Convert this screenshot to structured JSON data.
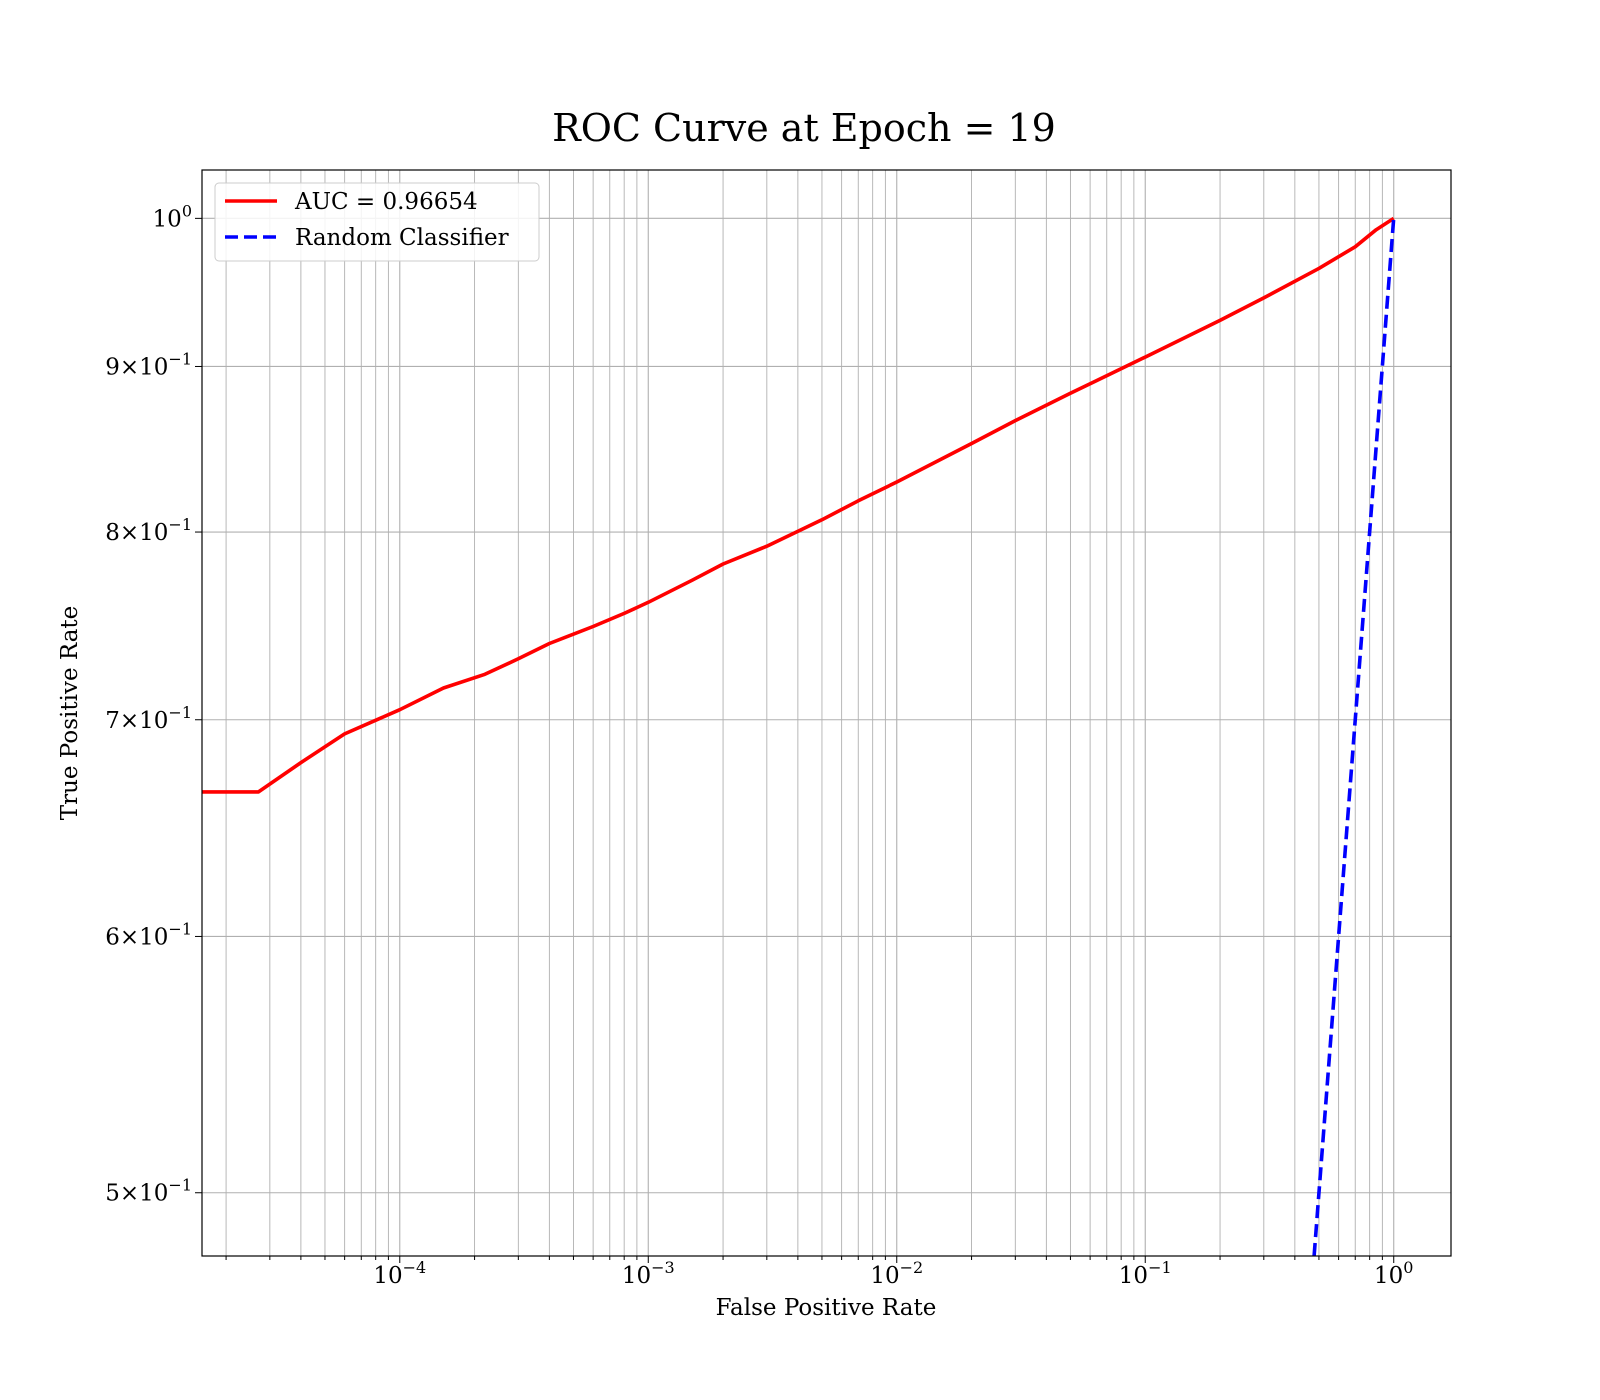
{
  "chart_data": {
    "type": "line",
    "title": "ROC Curve at Epoch = 19",
    "xlabel": "False Positive Rate",
    "ylabel": "True Positive Rate",
    "xscale": "log",
    "yscale": "log",
    "xlim": [
      1.6e-05,
      1.7
    ],
    "ylim": [
      0.478,
      1.035
    ],
    "grid": "both major and minor",
    "legend_position": "upper left",
    "x_ticks": [
      {
        "value": 0.0001,
        "base": "10",
        "exp": "−4"
      },
      {
        "value": 0.001,
        "base": "10",
        "exp": "−3"
      },
      {
        "value": 0.01,
        "base": "10",
        "exp": "−2"
      },
      {
        "value": 0.1,
        "base": "10",
        "exp": "−1"
      },
      {
        "value": 1,
        "base": "10",
        "exp": "0"
      }
    ],
    "y_ticks": [
      {
        "value": 1.0,
        "mant": "",
        "base": "10",
        "exp": "0"
      },
      {
        "value": 0.9,
        "mant": "9",
        "base": "10",
        "exp": "−1"
      },
      {
        "value": 0.8,
        "mant": "8",
        "base": "10",
        "exp": "−1"
      },
      {
        "value": 0.7,
        "mant": "7",
        "base": "10",
        "exp": "−1"
      },
      {
        "value": 0.6,
        "mant": "6",
        "base": "10",
        "exp": "−1"
      },
      {
        "value": 0.5,
        "mant": "5",
        "base": "10",
        "exp": "−1"
      }
    ],
    "series": [
      {
        "name": "AUC = 0.96654",
        "color": "#ff0000",
        "style": "solid",
        "x": [
          1.6e-05,
          2.7e-05,
          4e-05,
          6e-05,
          0.0001,
          0.00015,
          0.00022,
          0.0003,
          0.0004,
          0.0006,
          0.0008,
          0.001,
          0.0015,
          0.002,
          0.003,
          0.005,
          0.007,
          0.01,
          0.02,
          0.03,
          0.05,
          0.1,
          0.2,
          0.3,
          0.5,
          0.7,
          0.85,
          1.0
        ],
        "y": [
          0.665,
          0.665,
          0.679,
          0.693,
          0.705,
          0.716,
          0.723,
          0.731,
          0.739,
          0.748,
          0.755,
          0.761,
          0.773,
          0.782,
          0.792,
          0.807,
          0.818,
          0.829,
          0.852,
          0.866,
          0.883,
          0.906,
          0.93,
          0.945,
          0.965,
          0.98,
          0.992,
          1.0
        ]
      },
      {
        "name": "Random Classifier",
        "color": "#0000ff",
        "style": "dashed",
        "x": [
          0.478,
          1.0
        ],
        "y": [
          0.478,
          1.0
        ]
      }
    ]
  }
}
